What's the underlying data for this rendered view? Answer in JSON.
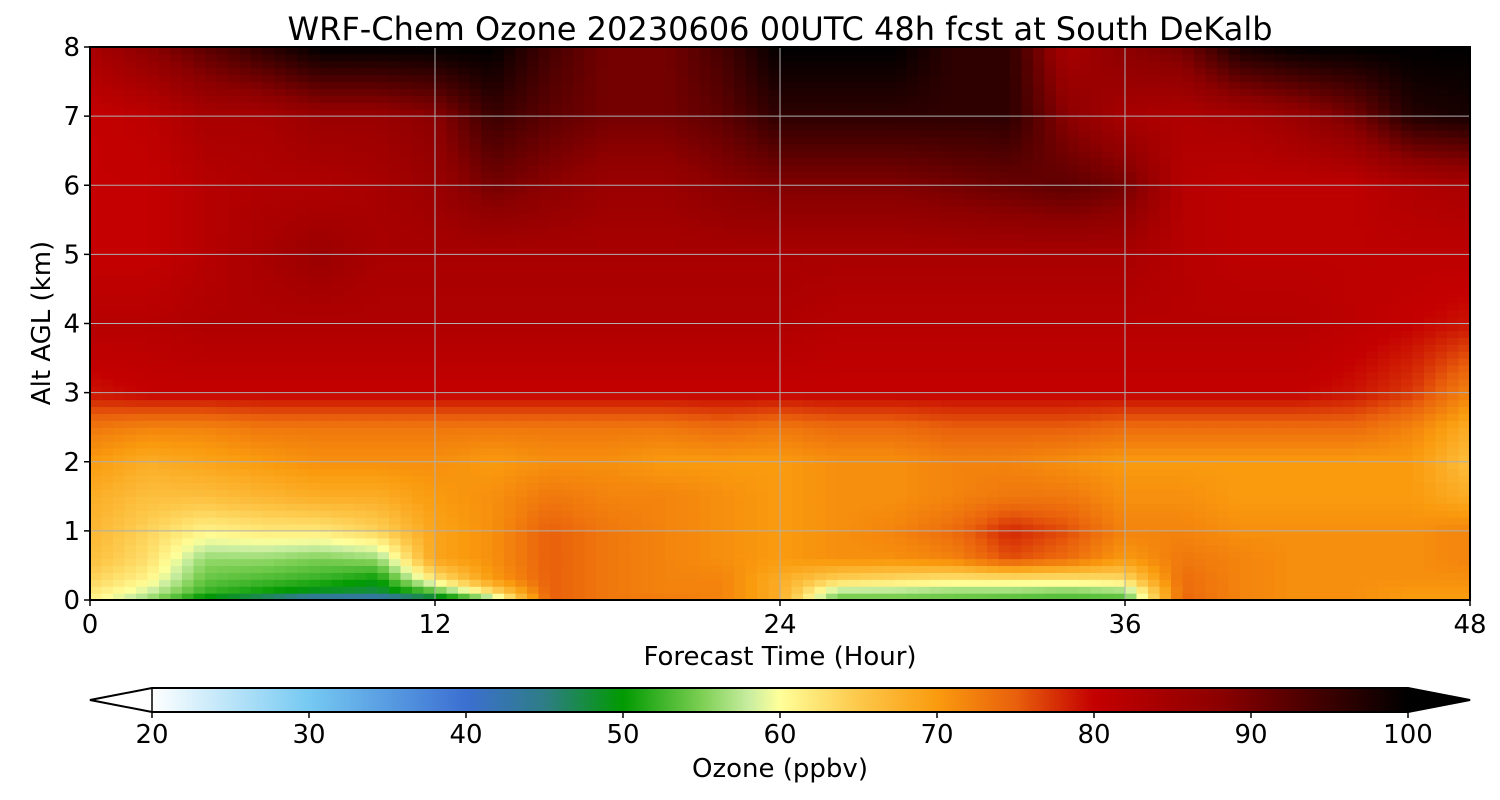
{
  "figure": {
    "title": "WRF-Chem Ozone  20230606 00UTC 48h fcst at South DeKalb"
  },
  "chart_data": {
    "type": "heatmap",
    "title": "WRF-Chem Ozone  20230606 00UTC 48h fcst at South DeKalb",
    "xlabel": "Forecast Time (Hour)",
    "ylabel": "Alt AGL (km)",
    "xlim": [
      0,
      48
    ],
    "ylim": [
      0,
      8
    ],
    "x_ticks": [
      "0",
      "12",
      "24",
      "36",
      "48"
    ],
    "y_ticks": [
      "0",
      "1",
      "2",
      "3",
      "4",
      "5",
      "6",
      "7",
      "8"
    ],
    "grid": true,
    "x": [
      0,
      2,
      4,
      6,
      8,
      10,
      12,
      14,
      16,
      18,
      20,
      22,
      24,
      26,
      28,
      30,
      32,
      34,
      36,
      38,
      40,
      42,
      44,
      46,
      48
    ],
    "y": [
      0,
      0.1,
      0.3,
      0.6,
      1.0,
      1.5,
      2.0,
      2.5,
      3.0,
      4.0,
      5.0,
      6.0,
      7.0,
      8.0
    ],
    "z": [
      [
        61,
        56,
        48,
        44,
        40,
        40,
        45,
        55,
        75,
        73,
        73,
        72,
        68,
        54,
        54,
        54,
        53,
        53,
        53,
        75,
        72,
        71,
        71,
        70,
        70
      ],
      [
        62,
        58,
        52,
        50,
        48,
        47,
        52,
        62,
        75,
        73,
        72,
        72,
        68,
        56,
        56,
        55,
        55,
        54,
        55,
        74,
        72,
        71,
        71,
        70,
        70
      ],
      [
        64,
        61,
        54,
        53,
        52,
        50,
        62,
        70,
        75,
        73,
        72,
        72,
        68,
        64,
        63,
        62,
        62,
        62,
        63,
        74,
        72,
        71,
        71,
        71,
        71
      ],
      [
        66,
        63,
        56,
        56,
        55,
        56,
        69,
        71,
        75,
        73,
        72,
        71,
        70,
        71,
        71,
        72,
        76,
        74,
        70,
        73,
        72,
        71,
        71,
        71,
        72
      ],
      [
        67,
        64,
        61,
        62,
        62,
        64,
        69,
        71,
        75,
        73,
        72,
        71,
        70,
        71,
        72,
        74,
        78,
        76,
        72,
        72,
        71,
        71,
        71,
        71,
        72
      ],
      [
        68,
        66,
        66,
        67,
        68,
        68,
        70,
        71,
        73,
        72,
        72,
        71,
        70,
        71,
        71,
        72,
        73,
        73,
        71,
        71,
        70,
        70,
        70,
        70,
        68
      ],
      [
        70,
        68,
        69,
        70,
        71,
        71,
        71,
        70,
        71,
        71,
        70,
        70,
        70,
        71,
        71,
        72,
        72,
        71,
        70,
        70,
        70,
        70,
        70,
        70,
        66
      ],
      [
        73,
        72,
        72,
        73,
        73,
        73,
        73,
        73,
        73,
        73,
        73,
        74,
        73,
        74,
        74,
        75,
        75,
        75,
        74,
        74,
        74,
        74,
        74,
        72,
        68
      ],
      [
        79,
        80,
        80,
        80,
        80,
        80,
        80,
        80,
        80,
        80,
        80,
        80,
        80,
        80,
        80,
        80,
        80,
        80,
        80,
        80,
        80,
        80,
        79,
        77,
        72
      ],
      [
        82,
        82,
        83,
        83,
        83,
        83,
        83,
        83,
        83,
        83,
        83,
        83,
        83,
        82,
        82,
        82,
        82,
        82,
        82,
        82,
        82,
        82,
        81,
        80,
        79
      ],
      [
        80,
        80,
        82,
        84,
        86,
        84,
        84,
        84,
        84,
        84,
        84,
        84,
        84,
        84,
        84,
        84,
        84,
        84,
        84,
        82,
        81,
        81,
        81,
        81,
        81
      ],
      [
        80,
        80,
        82,
        83,
        83,
        84,
        86,
        90,
        88,
        86,
        86,
        88,
        89,
        89,
        89,
        90,
        91,
        92,
        90,
        82,
        81,
        81,
        81,
        83,
        84
      ],
      [
        80,
        81,
        84,
        84,
        86,
        86,
        88,
        95,
        92,
        90,
        90,
        92,
        96,
        96,
        96,
        96,
        96,
        88,
        84,
        83,
        84,
        86,
        90,
        97,
        98
      ],
      [
        84,
        88,
        92,
        96,
        100,
        100,
        100,
        100,
        94,
        90,
        90,
        94,
        100,
        100,
        100,
        96,
        96,
        84,
        88,
        90,
        98,
        100,
        100,
        100,
        100
      ]
    ],
    "colorbar": {
      "label": "Ozone  (ppbv)",
      "range": [
        20,
        100
      ],
      "ticks": [
        "20",
        "30",
        "40",
        "50",
        "60",
        "70",
        "80",
        "90",
        "100"
      ],
      "extend": "both",
      "orientation": "horizontal"
    },
    "colormap_stops": [
      {
        "value": 20,
        "color": "#ffffff"
      },
      {
        "value": 30,
        "color": "#75c9f2"
      },
      {
        "value": 40,
        "color": "#3b6fd1"
      },
      {
        "value": 45,
        "color": "#2e7d86"
      },
      {
        "value": 50,
        "color": "#019a01"
      },
      {
        "value": 55,
        "color": "#7ccf53"
      },
      {
        "value": 58,
        "color": "#c8eda0"
      },
      {
        "value": 60,
        "color": "#ffff9a"
      },
      {
        "value": 65,
        "color": "#fdc84a"
      },
      {
        "value": 70,
        "color": "#fa9b0e"
      },
      {
        "value": 75,
        "color": "#e9600c"
      },
      {
        "value": 80,
        "color": "#c40000"
      },
      {
        "value": 88,
        "color": "#8c0000"
      },
      {
        "value": 95,
        "color": "#3a0000"
      },
      {
        "value": 100,
        "color": "#000000"
      }
    ]
  }
}
